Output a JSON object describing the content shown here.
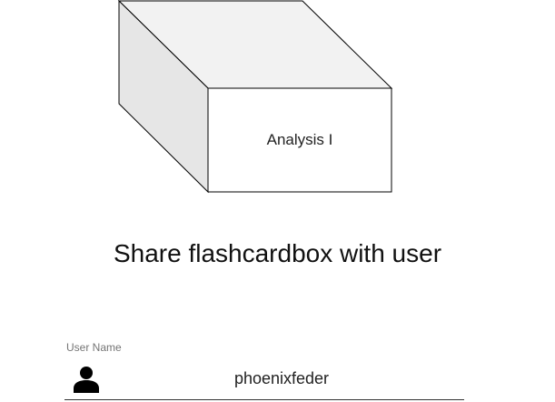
{
  "flashcardbox": {
    "name": "Analysis I"
  },
  "page": {
    "title": "Share flashcardbox with user"
  },
  "username_field": {
    "label": "User Name",
    "value": "phoenixfeder",
    "icon": "person-icon"
  },
  "colors": {
    "box_top_face": "#f2f2f2",
    "box_side_face": "#e6e6e6",
    "box_front_face": "#ffffff",
    "box_outline": "#000000",
    "label_gray": "#757575"
  }
}
